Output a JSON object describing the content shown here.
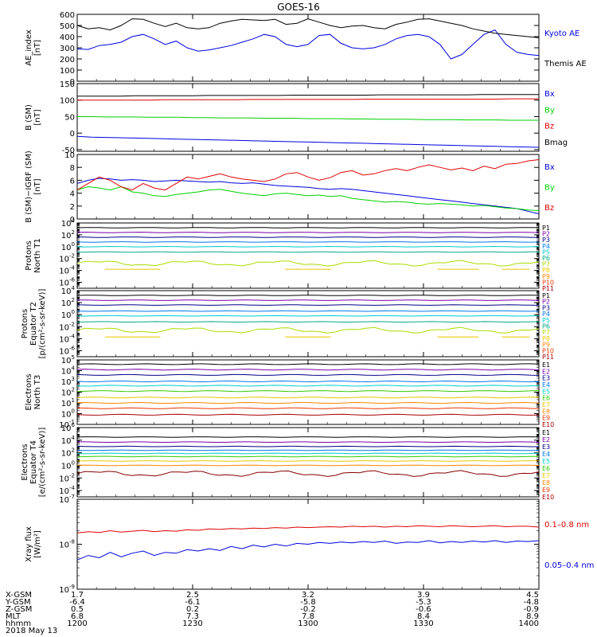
{
  "title": "GOES-16",
  "date_label": "2018 May 13",
  "colors": {
    "black": "#000000",
    "blue": "#0000e0",
    "red": "#e00000",
    "green": "#00d000",
    "navy": "#000088",
    "purple": "#7700aa",
    "azure": "#0077ee",
    "cyan": "#00cccc",
    "teal": "#00aa88",
    "lime": "#33cc00",
    "yellowgreen": "#aadd00",
    "yellow": "#e8c800",
    "orange": "#ff8800",
    "orangered": "#ee3300",
    "darkred": "#aa0000",
    "maroon": "#880000"
  },
  "chart_data": [
    {
      "type": "line",
      "ylabel": "AE_index\n[nT]",
      "yticks": [
        0,
        100,
        200,
        300,
        400,
        500,
        600
      ],
      "ylim": [
        0,
        600
      ],
      "legend": [
        {
          "text": "Kyoto AE",
          "color": "blue"
        },
        {
          "text": "Themis AE",
          "color": "black"
        }
      ],
      "series": [
        {
          "name": "Kyoto AE",
          "color": "blue",
          "values": [
            290,
            285,
            320,
            330,
            350,
            400,
            420,
            380,
            330,
            360,
            300,
            270,
            280,
            300,
            320,
            350,
            380,
            420,
            400,
            330,
            310,
            330,
            410,
            420,
            340,
            300,
            290,
            300,
            330,
            380,
            410,
            420,
            400,
            330,
            200,
            240,
            330,
            420,
            460,
            330,
            260,
            240,
            230
          ]
        },
        {
          "name": "Themis AE",
          "color": "black",
          "values": [
            500,
            470,
            480,
            460,
            500,
            560,
            555,
            520,
            490,
            520,
            480,
            470,
            480,
            520,
            540,
            555,
            550,
            545,
            555,
            510,
            520,
            560,
            530,
            500,
            480,
            495,
            500,
            480,
            470,
            510,
            530,
            555,
            560,
            540,
            520,
            500,
            470,
            450,
            430,
            420,
            410,
            400,
            390
          ]
        }
      ]
    },
    {
      "type": "line",
      "ylabel": "B (SM)\n[nT]",
      "yticks": [
        -50,
        0,
        50,
        100,
        150
      ],
      "ylim": [
        -55,
        150
      ],
      "legend": [
        {
          "text": "Bx",
          "color": "blue"
        },
        {
          "text": "By",
          "color": "green"
        },
        {
          "text": "Bz",
          "color": "red"
        },
        {
          "text": "Bmag",
          "color": "black"
        }
      ],
      "series": [
        {
          "name": "Bx",
          "color": "blue",
          "values": [
            -10,
            -12,
            -13,
            -14,
            -15,
            -16,
            -17,
            -18,
            -19,
            -20,
            -21,
            -22,
            -23,
            -24,
            -25,
            -26,
            -27,
            -28,
            -29,
            -30,
            -31,
            -32,
            -33,
            -34,
            -35,
            -36,
            -37,
            -38,
            -39,
            -40,
            -41,
            -42,
            -43
          ]
        },
        {
          "name": "By",
          "color": "green",
          "values": [
            50,
            50,
            49,
            49,
            49,
            48,
            48,
            48,
            47,
            47,
            46,
            46,
            46,
            45,
            45,
            45,
            44,
            44,
            44,
            43,
            43,
            42,
            42,
            42,
            41,
            41,
            41,
            40,
            40,
            40,
            39,
            39,
            39
          ]
        },
        {
          "name": "Bz",
          "color": "red",
          "values": [
            100,
            100,
            100,
            100,
            100,
            100,
            101,
            101,
            101,
            101,
            101,
            101,
            102,
            102,
            102,
            102,
            102,
            102,
            102,
            102,
            103,
            103,
            103,
            103,
            103,
            103,
            103,
            103,
            103,
            103,
            104,
            104,
            104
          ]
        },
        {
          "name": "Bmag",
          "color": "black",
          "values": [
            112,
            112,
            112,
            112,
            113,
            113,
            113,
            113,
            113,
            114,
            114,
            114,
            114,
            114,
            114,
            115,
            115,
            115,
            115,
            115,
            115,
            116,
            116,
            116,
            116,
            116,
            116,
            116,
            117,
            117,
            117,
            117,
            117
          ]
        }
      ]
    },
    {
      "type": "line",
      "ylabel": "B (SM)−IGRF (SM)\n[nT]",
      "yticks": [
        0,
        2,
        4,
        6,
        8,
        10
      ],
      "ylim": [
        0,
        10
      ],
      "legend": [
        {
          "text": "Bx",
          "color": "blue"
        },
        {
          "text": "By",
          "color": "green"
        },
        {
          "text": "Bz",
          "color": "red"
        }
      ],
      "series": [
        {
          "name": "Bx",
          "color": "blue",
          "values": [
            5.5,
            6.0,
            6.3,
            6.2,
            6.0,
            6.1,
            6.0,
            5.8,
            5.9,
            6.0,
            5.9,
            5.8,
            5.7,
            5.8,
            5.6,
            5.5,
            5.6,
            5.4,
            5.2,
            5.1,
            5.0,
            4.9,
            4.7,
            4.6,
            4.7,
            4.6,
            4.4,
            4.2,
            4.0,
            3.8,
            3.6,
            3.4,
            3.2,
            3.0,
            2.8,
            2.6,
            2.4,
            2.2,
            2.0,
            1.8,
            1.6,
            1.2,
            0.8
          ]
        },
        {
          "name": "By",
          "color": "green",
          "values": [
            4.5,
            5.0,
            4.8,
            4.5,
            5.0,
            4.2,
            4.0,
            3.6,
            3.5,
            3.8,
            4.0,
            4.2,
            4.5,
            4.6,
            4.3,
            4.0,
            3.8,
            3.6,
            3.9,
            4.0,
            3.8,
            3.6,
            3.7,
            3.5,
            3.6,
            3.2,
            3.0,
            2.8,
            2.6,
            2.7,
            2.6,
            2.4,
            2.3,
            2.4,
            2.3,
            2.2,
            2.0,
            2.1,
            1.9,
            1.7,
            1.6,
            1.4,
            1.3
          ]
        },
        {
          "name": "Bz",
          "color": "red",
          "values": [
            4.5,
            5.5,
            6.5,
            6.0,
            5.0,
            4.5,
            5.5,
            4.8,
            4.5,
            5.5,
            6.5,
            6.2,
            6.6,
            7.0,
            6.5,
            6.2,
            6.0,
            5.8,
            6.2,
            7.0,
            7.2,
            6.5,
            6.0,
            6.4,
            7.2,
            7.5,
            6.8,
            7.0,
            7.5,
            7.8,
            7.5,
            8.0,
            8.4,
            8.0,
            7.6,
            7.9,
            7.5,
            8.2,
            7.8,
            8.5,
            8.6,
            9.0,
            9.2
          ]
        }
      ]
    },
    {
      "type": "line",
      "ylabel": "Protons\nNorth T1",
      "ylog": true,
      "yticks_exp": [
        -6,
        -4,
        -2,
        0,
        2,
        4
      ],
      "ylim_exp": [
        -7,
        4
      ],
      "legend": [
        {
          "text": "P1",
          "color": "black"
        },
        {
          "text": "P2",
          "color": "purple"
        },
        {
          "text": "P3",
          "color": "navy"
        },
        {
          "text": "P4",
          "color": "azure"
        },
        {
          "text": "P5",
          "color": "cyan"
        },
        {
          "text": "P6",
          "color": "teal"
        },
        {
          "text": "P7",
          "color": "yellowgreen"
        },
        {
          "text": "P8",
          "color": "yellow"
        },
        {
          "text": "P9",
          "color": "orange"
        },
        {
          "text": "P10",
          "color": "orangered"
        },
        {
          "text": "P11",
          "color": "darkred"
        }
      ],
      "series": [
        {
          "name": "P1",
          "color": "black",
          "level_exp": 3.2
        },
        {
          "name": "P2",
          "color": "purple",
          "level_exp": 2.4
        },
        {
          "name": "P3",
          "color": "navy",
          "level_exp": 1.6
        },
        {
          "name": "P4",
          "color": "azure",
          "level_exp": 0.8
        },
        {
          "name": "P5",
          "color": "cyan",
          "level_exp": 0.0
        },
        {
          "name": "P6",
          "color": "teal",
          "level_exp": -0.9
        },
        {
          "name": "P7",
          "color": "yellowgreen",
          "level_exp": -2.8,
          "wavy": true
        },
        {
          "name": "P8",
          "color": "yellow",
          "level_exp": -3.8,
          "sparse": true
        }
      ]
    },
    {
      "type": "line",
      "ylabel": "Protons\nEquator T2\n[p/(cm²-s-sr-keV)]",
      "ylog": true,
      "yticks_exp": [
        -6,
        -4,
        -2,
        0,
        2,
        4
      ],
      "ylim_exp": [
        -7,
        4
      ],
      "legend": [
        {
          "text": "P1",
          "color": "black"
        },
        {
          "text": "P2",
          "color": "purple"
        },
        {
          "text": "P3",
          "color": "navy"
        },
        {
          "text": "P4",
          "color": "azure"
        },
        {
          "text": "P5",
          "color": "cyan"
        },
        {
          "text": "P6",
          "color": "teal"
        },
        {
          "text": "P7",
          "color": "yellowgreen"
        },
        {
          "text": "P8",
          "color": "yellow"
        },
        {
          "text": "P9",
          "color": "orange"
        },
        {
          "text": "P10",
          "color": "orangered"
        },
        {
          "text": "P11",
          "color": "darkred"
        }
      ],
      "series": [
        {
          "name": "P1",
          "color": "black",
          "level_exp": 3.2
        },
        {
          "name": "P2",
          "color": "purple",
          "level_exp": 2.4
        },
        {
          "name": "P3",
          "color": "navy",
          "level_exp": 1.6
        },
        {
          "name": "P4",
          "color": "azure",
          "level_exp": 0.6
        },
        {
          "name": "P5",
          "color": "cyan",
          "level_exp": -0.2
        },
        {
          "name": "P6",
          "color": "teal",
          "level_exp": -1.2
        },
        {
          "name": "P7",
          "color": "yellowgreen",
          "level_exp": -2.6,
          "wavy": true
        },
        {
          "name": "P8",
          "color": "yellow",
          "level_exp": -3.7,
          "sparse": true
        }
      ]
    },
    {
      "type": "line",
      "ylabel": "Electrons\nNorth T3",
      "ylog": true,
      "yticks_exp": [
        -1,
        0,
        1,
        2,
        3,
        4,
        5
      ],
      "ylim_exp": [
        -1,
        5
      ],
      "legend": [
        {
          "text": "E1",
          "color": "black"
        },
        {
          "text": "E2",
          "color": "purple"
        },
        {
          "text": "E3",
          "color": "navy"
        },
        {
          "text": "E4",
          "color": "azure"
        },
        {
          "text": "E5",
          "color": "cyan"
        },
        {
          "text": "E6",
          "color": "lime"
        },
        {
          "text": "E7",
          "color": "yellow"
        },
        {
          "text": "E8",
          "color": "orange"
        },
        {
          "text": "E9",
          "color": "orangered"
        },
        {
          "text": "E10",
          "color": "darkred"
        }
      ],
      "series": [
        {
          "name": "E1",
          "color": "black",
          "level_exp": 4.6
        },
        {
          "name": "E2",
          "color": "purple",
          "level_exp": 4.1
        },
        {
          "name": "E3",
          "color": "navy",
          "level_exp": 3.6
        },
        {
          "name": "E4",
          "color": "azure",
          "level_exp": 3.0
        },
        {
          "name": "E5",
          "color": "cyan",
          "level_exp": 2.6
        },
        {
          "name": "E6",
          "color": "lime",
          "level_exp": 2.1
        },
        {
          "name": "E7",
          "color": "yellow",
          "level_exp": 1.5
        },
        {
          "name": "E8",
          "color": "orange",
          "level_exp": 1.0
        },
        {
          "name": "E9",
          "color": "orangered",
          "level_exp": 0.5
        },
        {
          "name": "E10",
          "color": "darkred",
          "level_exp": -0.1
        }
      ]
    },
    {
      "type": "line",
      "ylabel": "Electrons\nEquator T4\n[e/(cm²-s-sr-keV)]",
      "ylog": true,
      "yticks_exp": [
        -4,
        -2,
        0,
        2,
        4,
        6
      ],
      "ylim_exp": [
        -5,
        6
      ],
      "legend": [
        {
          "text": "E1",
          "color": "black"
        },
        {
          "text": "E2",
          "color": "purple"
        },
        {
          "text": "E3",
          "color": "navy"
        },
        {
          "text": "E4",
          "color": "azure"
        },
        {
          "text": "E5",
          "color": "cyan"
        },
        {
          "text": "E6",
          "color": "lime"
        },
        {
          "text": "E7",
          "color": "yellow"
        },
        {
          "text": "E8",
          "color": "orange"
        },
        {
          "text": "E9",
          "color": "orangered"
        },
        {
          "text": "E10",
          "color": "darkred"
        }
      ],
      "series": [
        {
          "name": "E1",
          "color": "black",
          "level_exp": 4.5
        },
        {
          "name": "E2",
          "color": "purple",
          "level_exp": 3.7
        },
        {
          "name": "E3",
          "color": "navy",
          "level_exp": 3.0
        },
        {
          "name": "E4",
          "color": "azure",
          "level_exp": 2.4
        },
        {
          "name": "E5",
          "color": "cyan",
          "level_exp": 1.9
        },
        {
          "name": "E6",
          "color": "lime",
          "level_exp": 1.4
        },
        {
          "name": "E7",
          "color": "yellow",
          "level_exp": 0.7
        },
        {
          "name": "E8",
          "color": "orange",
          "level_exp": 0.0
        },
        {
          "name": "E9",
          "color": "maroon",
          "level_exp": -1.3,
          "wavy": true
        }
      ]
    },
    {
      "type": "line",
      "ylabel": "Xray flux\n[W/m²]",
      "ylog": true,
      "yticks_exp": [
        -9,
        -8,
        -7
      ],
      "ylim_exp": [
        -9,
        -7
      ],
      "legend": [
        {
          "text": "0.1–0.8 nm",
          "color": "red"
        },
        {
          "text": "0.05–0.4 nm",
          "color": "blue"
        }
      ],
      "series": [
        {
          "name": "0.1–0.8 nm",
          "color": "red",
          "values_exp": [
            -7.75,
            -7.72,
            -7.74,
            -7.7,
            -7.73,
            -7.71,
            -7.69,
            -7.72,
            -7.7,
            -7.71,
            -7.68,
            -7.69,
            -7.66,
            -7.67,
            -7.65,
            -7.66,
            -7.64,
            -7.65,
            -7.63,
            -7.64,
            -7.62,
            -7.63,
            -7.62,
            -7.61,
            -7.62,
            -7.6,
            -7.61,
            -7.6,
            -7.62,
            -7.6,
            -7.61,
            -7.59,
            -7.6,
            -7.61,
            -7.59,
            -7.6,
            -7.61,
            -7.6,
            -7.59,
            -7.61,
            -7.6,
            -7.6,
            -7.62
          ]
        },
        {
          "name": "0.05–0.4 nm",
          "color": "blue",
          "values_exp": [
            -8.35,
            -8.25,
            -8.3,
            -8.18,
            -8.28,
            -8.2,
            -8.15,
            -8.25,
            -8.18,
            -8.2,
            -8.12,
            -8.15,
            -8.1,
            -8.14,
            -8.05,
            -8.1,
            -8.02,
            -8.06,
            -8.0,
            -8.04,
            -7.98,
            -8.0,
            -7.96,
            -7.98,
            -7.95,
            -7.97,
            -7.94,
            -7.96,
            -7.93,
            -7.98,
            -7.95,
            -7.96,
            -7.92,
            -7.97,
            -7.94,
            -7.96,
            -7.93,
            -7.95,
            -7.92,
            -7.96,
            -7.93,
            -7.94,
            -7.92
          ]
        }
      ]
    }
  ],
  "ephemeris": {
    "row_labels": [
      "X-GSM",
      "Y-GSM",
      "Z-GSM",
      "MLT",
      "hhmm"
    ],
    "columns": [
      [
        "1.7",
        "-6.4",
        "0.5",
        "6.8",
        "1200"
      ],
      [
        "2.5",
        "-6.1",
        "0.2",
        "7.3",
        "1230"
      ],
      [
        "3.2",
        "-5.8",
        "-0.2",
        "7.8",
        "1300"
      ],
      [
        "3.9",
        "-5.3",
        "-0.6",
        "8.4",
        "1330"
      ],
      [
        "4.5",
        "-4.8",
        "-0.9",
        "8.9",
        "1400"
      ]
    ]
  }
}
